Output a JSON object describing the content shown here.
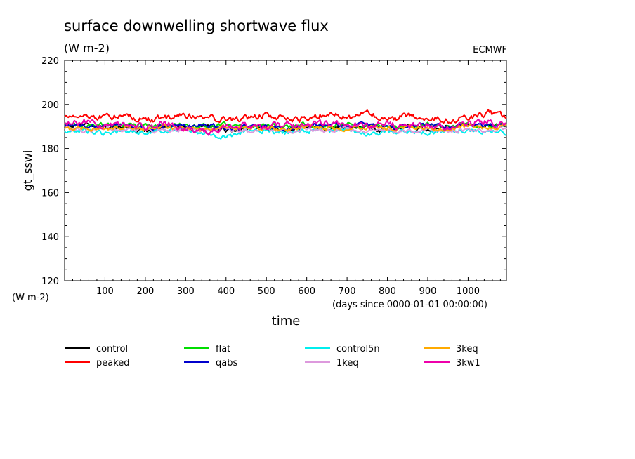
{
  "chart_data": {
    "type": "line",
    "title": "surface downwelling shortwave flux",
    "subtitle": "(W m-2)",
    "source": "ECMWF",
    "xlabel": "time",
    "xunits": "(days since 0000-01-01 00:00:00)",
    "ylabel": "gt_sswi",
    "yunits": "(W m-2)",
    "xlim": [
      0,
      1095
    ],
    "ylim": [
      120,
      220
    ],
    "xticks": [
      100,
      200,
      300,
      400,
      500,
      600,
      700,
      800,
      900,
      1000
    ],
    "yticks": [
      120,
      140,
      160,
      180,
      200,
      220
    ],
    "legend_position": "bottom",
    "series": [
      {
        "name": "control",
        "color": "#000000",
        "mean": 190.0,
        "amp": 2.0,
        "x": [
          0,
          50,
          100,
          150,
          200,
          250,
          300,
          350,
          400,
          450,
          500,
          550,
          600,
          650,
          700,
          750,
          800,
          850,
          900,
          950,
          1000,
          1050,
          1095
        ],
        "y": [
          190,
          191,
          189,
          190,
          188,
          190,
          189,
          190,
          188,
          189,
          190,
          187,
          190,
          189,
          190,
          189,
          188,
          190,
          189,
          190,
          191,
          190,
          190
        ]
      },
      {
        "name": "peaked",
        "color": "#ff0000",
        "mean": 194.0,
        "amp": 2.5,
        "x": [
          0,
          50,
          100,
          150,
          200,
          250,
          300,
          350,
          400,
          450,
          500,
          550,
          600,
          650,
          700,
          750,
          800,
          850,
          900,
          950,
          1000,
          1050,
          1095
        ],
        "y": [
          195,
          195,
          194,
          195,
          193,
          194,
          195,
          194,
          193,
          194,
          195,
          194,
          193,
          196,
          194,
          196,
          193,
          195,
          194,
          193,
          194,
          196,
          194
        ]
      },
      {
        "name": "flat",
        "color": "#00dd00",
        "mean": 191.0,
        "amp": 1.8,
        "x": [
          0,
          50,
          100,
          150,
          200,
          250,
          300,
          350,
          400,
          450,
          500,
          550,
          600,
          650,
          700,
          750,
          800,
          850,
          900,
          950,
          1000,
          1050,
          1095
        ],
        "y": [
          191,
          190,
          191,
          190,
          191,
          190,
          191,
          190,
          191,
          190,
          191,
          190,
          191,
          190,
          191,
          190,
          191,
          190,
          191,
          190,
          191,
          190,
          191
        ]
      },
      {
        "name": "qabs",
        "color": "#0000cc",
        "mean": 190.5,
        "amp": 1.8,
        "x": [
          0,
          50,
          100,
          150,
          200,
          250,
          300,
          350,
          400,
          450,
          500,
          550,
          600,
          650,
          700,
          750,
          800,
          850,
          900,
          950,
          1000,
          1050,
          1095
        ],
        "y": [
          191,
          190,
          190,
          191,
          189,
          190,
          190,
          191,
          189,
          190,
          190,
          189,
          190,
          191,
          190,
          191,
          189,
          190,
          191,
          190,
          191,
          190,
          190
        ]
      },
      {
        "name": "control5n",
        "color": "#00eeee",
        "mean": 188.0,
        "amp": 2.0,
        "x": [
          0,
          50,
          100,
          150,
          200,
          250,
          300,
          350,
          400,
          450,
          500,
          550,
          600,
          650,
          700,
          750,
          800,
          850,
          900,
          950,
          1000,
          1050,
          1095
        ],
        "y": [
          188,
          188,
          187,
          188,
          187,
          188,
          188,
          187,
          185,
          188,
          188,
          187,
          188,
          188,
          188,
          186,
          188,
          188,
          187,
          188,
          188,
          188,
          187
        ]
      },
      {
        "name": "1keq",
        "color": "#dd99dd",
        "mean": 189.0,
        "amp": 1.8,
        "x": [
          0,
          50,
          100,
          150,
          200,
          250,
          300,
          350,
          400,
          450,
          500,
          550,
          600,
          650,
          700,
          750,
          800,
          850,
          900,
          950,
          1000,
          1050,
          1095
        ],
        "y": [
          189,
          188,
          189,
          188,
          189,
          188,
          189,
          188,
          189,
          188,
          189,
          188,
          189,
          188,
          189,
          188,
          189,
          188,
          189,
          188,
          189,
          188,
          189
        ]
      },
      {
        "name": "3keq",
        "color": "#ffaa00",
        "mean": 189.5,
        "amp": 1.8,
        "x": [
          0,
          50,
          100,
          150,
          200,
          250,
          300,
          350,
          400,
          450,
          500,
          550,
          600,
          650,
          700,
          750,
          800,
          850,
          900,
          950,
          1000,
          1050,
          1095
        ],
        "y": [
          189,
          189,
          189,
          190,
          189,
          190,
          189,
          189,
          190,
          190,
          189,
          189,
          190,
          189,
          189,
          190,
          189,
          190,
          189,
          189,
          190,
          189,
          190
        ]
      },
      {
        "name": "3kw1",
        "color": "#ee00aa",
        "mean": 191.0,
        "amp": 2.8,
        "x": [
          0,
          50,
          100,
          150,
          200,
          250,
          300,
          350,
          400,
          450,
          500,
          550,
          600,
          650,
          700,
          750,
          800,
          850,
          900,
          950,
          1000,
          1050,
          1095
        ],
        "y": [
          191,
          192,
          190,
          191,
          190,
          191,
          189,
          187,
          190,
          191,
          190,
          191,
          190,
          192,
          191,
          190,
          191,
          190,
          191,
          190,
          191,
          192,
          190
        ]
      }
    ]
  }
}
